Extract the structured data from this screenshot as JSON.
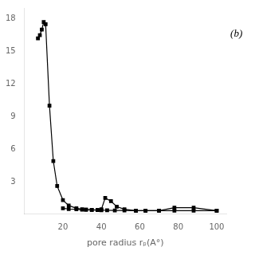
{
  "chart_data": {
    "type": "line",
    "x_label": "pore radius rₚ(A°)",
    "annotation": "(b)",
    "xlim": [
      0,
      105
    ],
    "ylim": [
      0,
      19
    ],
    "xticks": [
      20,
      40,
      60,
      80,
      100
    ],
    "yticks": [
      3,
      6,
      9,
      12,
      15,
      18
    ],
    "grid": false,
    "series": [
      {
        "color": "#000000",
        "marker": "square",
        "line_style": "solid",
        "x": [
          7,
          8,
          9,
          10,
          11,
          13,
          15,
          17,
          20,
          23,
          27,
          30,
          32,
          35,
          38,
          40,
          43,
          47,
          52,
          58,
          63,
          70,
          78,
          88,
          100
        ],
        "values": [
          16.2,
          16.5,
          17.0,
          17.7,
          17.5,
          10.0,
          4.9,
          2.6,
          1.3,
          0.8,
          0.55,
          0.45,
          0.42,
          0.4,
          0.38,
          0.37,
          0.36,
          0.35,
          0.34,
          0.33,
          0.33,
          0.33,
          0.33,
          0.33,
          0.33
        ]
      },
      {
        "color": "#000000",
        "marker": "square",
        "line_style": "solid",
        "x": [
          20,
          23,
          27,
          30,
          32,
          35,
          38,
          40,
          42,
          45,
          48,
          52,
          58,
          63,
          70,
          78,
          88,
          100
        ],
        "values": [
          0.55,
          0.48,
          0.45,
          0.42,
          0.42,
          0.4,
          0.38,
          0.45,
          1.5,
          1.2,
          0.7,
          0.45,
          0.33,
          0.33,
          0.33,
          0.6,
          0.6,
          0.33
        ]
      }
    ]
  }
}
